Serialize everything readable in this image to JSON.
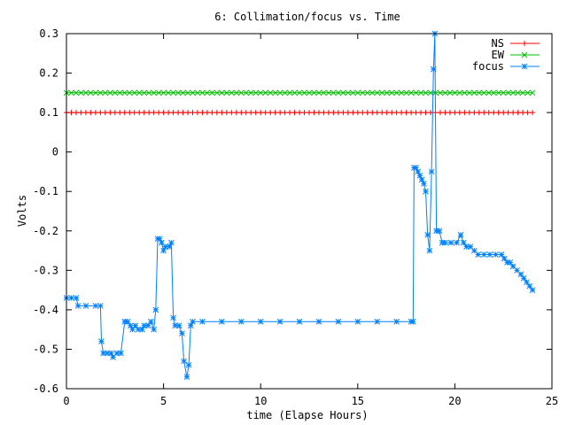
{
  "chart_data": {
    "type": "line",
    "title": "6: Collimation/focus vs. Time",
    "xlabel": "time (Elapse Hours)",
    "ylabel": "Volts",
    "xlim": [
      0,
      25
    ],
    "ylim": [
      -0.6,
      0.3
    ],
    "xticks": [
      0,
      5,
      10,
      15,
      20,
      25
    ],
    "yticks": [
      -0.6,
      -0.5,
      -0.4,
      -0.3,
      -0.2,
      -0.1,
      0,
      0.1,
      0.2,
      0.3
    ],
    "xtick_labels": [
      "0",
      "5",
      "10",
      "15",
      "20",
      "25"
    ],
    "ytick_labels": [
      "-0.6",
      "-0.5",
      "-0.4",
      "-0.3",
      "-0.2",
      "-0.1",
      "0",
      "0.1",
      "0.2",
      "0.3"
    ],
    "grid": false,
    "legend_position": "top-right",
    "series": [
      {
        "name": "NS",
        "color": "#ff0000",
        "marker": "plus",
        "constant": 0.1,
        "x_range": [
          0,
          24
        ],
        "count": 97
      },
      {
        "name": "EW",
        "color": "#00c000",
        "marker": "cross",
        "constant": 0.15,
        "x_range": [
          0,
          24
        ],
        "count": 97
      },
      {
        "name": "focus",
        "color": "#0080ff",
        "marker": "star",
        "points": [
          [
            0,
            -0.37
          ],
          [
            0.25,
            -0.37
          ],
          [
            0.5,
            -0.37
          ],
          [
            0.6,
            -0.39
          ],
          [
            1.0,
            -0.39
          ],
          [
            1.5,
            -0.39
          ],
          [
            1.75,
            -0.39
          ],
          [
            1.8,
            -0.48
          ],
          [
            1.9,
            -0.51
          ],
          [
            2.1,
            -0.51
          ],
          [
            2.3,
            -0.51
          ],
          [
            2.4,
            -0.52
          ],
          [
            2.6,
            -0.51
          ],
          [
            2.8,
            -0.51
          ],
          [
            3.0,
            -0.43
          ],
          [
            3.15,
            -0.43
          ],
          [
            3.3,
            -0.44
          ],
          [
            3.4,
            -0.45
          ],
          [
            3.55,
            -0.44
          ],
          [
            3.7,
            -0.45
          ],
          [
            3.9,
            -0.45
          ],
          [
            4.0,
            -0.44
          ],
          [
            4.2,
            -0.44
          ],
          [
            4.35,
            -0.43
          ],
          [
            4.5,
            -0.45
          ],
          [
            4.6,
            -0.4
          ],
          [
            4.7,
            -0.22
          ],
          [
            4.8,
            -0.22
          ],
          [
            4.9,
            -0.23
          ],
          [
            5.0,
            -0.25
          ],
          [
            5.1,
            -0.24
          ],
          [
            5.3,
            -0.24
          ],
          [
            5.4,
            -0.23
          ],
          [
            5.5,
            -0.42
          ],
          [
            5.6,
            -0.44
          ],
          [
            5.8,
            -0.44
          ],
          [
            5.95,
            -0.46
          ],
          [
            6.05,
            -0.53
          ],
          [
            6.2,
            -0.57
          ],
          [
            6.3,
            -0.54
          ],
          [
            6.4,
            -0.44
          ],
          [
            6.5,
            -0.43
          ],
          [
            7.0,
            -0.43
          ],
          [
            8.0,
            -0.43
          ],
          [
            9.0,
            -0.43
          ],
          [
            10.0,
            -0.43
          ],
          [
            11.0,
            -0.43
          ],
          [
            12.0,
            -0.43
          ],
          [
            13.0,
            -0.43
          ],
          [
            14.0,
            -0.43
          ],
          [
            15.0,
            -0.43
          ],
          [
            16.0,
            -0.43
          ],
          [
            17.0,
            -0.43
          ],
          [
            17.75,
            -0.43
          ],
          [
            17.85,
            -0.43
          ],
          [
            17.9,
            -0.04
          ],
          [
            18.0,
            -0.04
          ],
          [
            18.1,
            -0.05
          ],
          [
            18.2,
            -0.06
          ],
          [
            18.3,
            -0.07
          ],
          [
            18.4,
            -0.08
          ],
          [
            18.5,
            -0.1
          ],
          [
            18.6,
            -0.21
          ],
          [
            18.7,
            -0.25
          ],
          [
            18.8,
            -0.05
          ],
          [
            18.9,
            0.21
          ],
          [
            18.97,
            0.3
          ],
          [
            19.05,
            -0.2
          ],
          [
            19.2,
            -0.2
          ],
          [
            19.35,
            -0.23
          ],
          [
            19.5,
            -0.23
          ],
          [
            19.8,
            -0.23
          ],
          [
            20.1,
            -0.23
          ],
          [
            20.3,
            -0.21
          ],
          [
            20.45,
            -0.23
          ],
          [
            20.6,
            -0.24
          ],
          [
            20.8,
            -0.24
          ],
          [
            21.0,
            -0.25
          ],
          [
            21.2,
            -0.26
          ],
          [
            21.5,
            -0.26
          ],
          [
            21.8,
            -0.26
          ],
          [
            22.1,
            -0.26
          ],
          [
            22.4,
            -0.26
          ],
          [
            22.55,
            -0.27
          ],
          [
            22.7,
            -0.28
          ],
          [
            22.85,
            -0.28
          ],
          [
            23.0,
            -0.29
          ],
          [
            23.2,
            -0.3
          ],
          [
            23.4,
            -0.31
          ],
          [
            23.55,
            -0.32
          ],
          [
            23.7,
            -0.33
          ],
          [
            23.85,
            -0.34
          ],
          [
            24.0,
            -0.35
          ]
        ]
      }
    ]
  }
}
